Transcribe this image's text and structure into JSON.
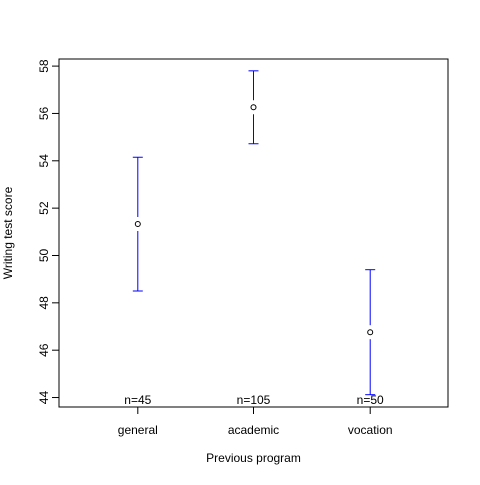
{
  "chart_data": {
    "type": "scatter",
    "xlabel": "Previous program",
    "ylabel": "Writing test score",
    "categories": [
      "general",
      "academic",
      "vocation"
    ],
    "ylim": [
      43.6,
      58.3
    ],
    "yticks": [
      44,
      46,
      48,
      50,
      52,
      54,
      56,
      58
    ],
    "ytick_labels": [
      "44",
      "46",
      "48",
      "50",
      "52",
      "54",
      "56",
      "58"
    ],
    "grid": false,
    "series": [
      {
        "means": [
          51.33,
          56.26,
          46.76
        ],
        "lower": [
          48.5,
          54.72,
          44.12
        ],
        "upper": [
          54.15,
          57.8,
          49.4
        ]
      }
    ],
    "n_labels": [
      "n=45",
      "n=105",
      "n=50"
    ],
    "colors": {
      "error_bar": "#0000ff",
      "point": "#000000",
      "axis": "#000000"
    }
  }
}
